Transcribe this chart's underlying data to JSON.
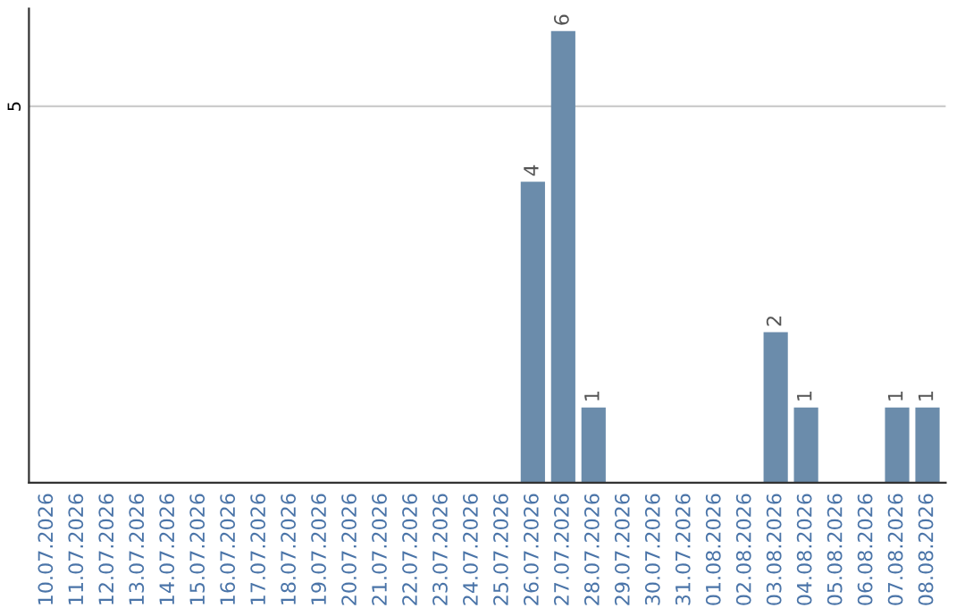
{
  "chart_data": {
    "type": "bar",
    "categories": [
      "10.07.2026",
      "11.07.2026",
      "12.07.2026",
      "13.07.2026",
      "14.07.2026",
      "15.07.2026",
      "16.07.2026",
      "17.07.2026",
      "18.07.2026",
      "19.07.2026",
      "20.07.2026",
      "21.07.2026",
      "22.07.2026",
      "23.07.2026",
      "24.07.2026",
      "25.07.2026",
      "26.07.2026",
      "27.07.2026",
      "28.07.2026",
      "29.07.2026",
      "30.07.2026",
      "31.07.2026",
      "01.08.2026",
      "02.08.2026",
      "03.08.2026",
      "04.08.2026",
      "05.08.2026",
      "06.08.2026",
      "07.08.2026",
      "08.08.2026"
    ],
    "values": [
      null,
      null,
      null,
      null,
      null,
      null,
      null,
      null,
      null,
      null,
      null,
      null,
      null,
      null,
      null,
      null,
      4,
      6,
      1,
      null,
      null,
      null,
      null,
      null,
      2,
      1,
      null,
      null,
      1,
      1
    ],
    "data_labels": true,
    "color": "#6b8cab",
    "ylim": [
      0,
      6.3
    ],
    "yticks": [
      5
    ],
    "grid": "y"
  }
}
